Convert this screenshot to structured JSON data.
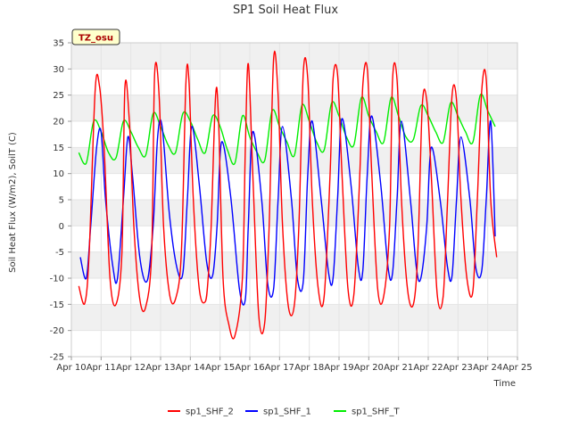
{
  "chart_data": {
    "type": "line",
    "title": "SP1 Soil Heat Flux",
    "xlabel": "Time",
    "ylabel": "Soil Heat Flux (W/m2), SoilT (C)",
    "site_badge": "TZ_osu",
    "xlim": [
      10,
      25
    ],
    "ylim": [
      -25,
      35
    ],
    "x_ticks": [
      10,
      11,
      12,
      13,
      14,
      15,
      16,
      17,
      18,
      19,
      20,
      21,
      22,
      23,
      24,
      25
    ],
    "x_tick_labels": [
      "Apr 10",
      "Apr 11",
      "Apr 12",
      "Apr 13",
      "Apr 14",
      "Apr 15",
      "Apr 16",
      "Apr 17",
      "Apr 18",
      "Apr 19",
      "Apr 20",
      "Apr 21",
      "Apr 22",
      "Apr 23",
      "Apr 24",
      "Apr 25"
    ],
    "y_ticks": [
      -25,
      -20,
      -15,
      -10,
      -5,
      0,
      5,
      10,
      15,
      20,
      25,
      30,
      35
    ],
    "grid": true,
    "legend_position": "bottom",
    "colors": {
      "sp1_SHF_2": "#ff0000",
      "sp1_SHF_1": "#0000ff",
      "sp1_SHF_T": "#00ee00",
      "band": "#f0f0f0",
      "badge_fill": "#ffffcc",
      "badge_text": "#aa0000"
    },
    "series": [
      {
        "name": "sp1_SHF_2",
        "x": [
          10.25,
          10.45,
          10.6,
          10.8,
          10.95,
          11.1,
          11.3,
          11.5,
          11.7,
          11.8,
          11.95,
          12.1,
          12.3,
          12.5,
          12.7,
          12.8,
          12.95,
          13.1,
          13.3,
          13.5,
          13.7,
          13.85,
          13.95,
          14.1,
          14.3,
          14.5,
          14.6,
          14.7,
          14.85,
          14.95,
          15.1,
          15.3,
          15.5,
          15.75,
          15.85,
          15.95,
          16.1,
          16.3,
          16.5,
          16.65,
          16.8,
          16.95,
          17.1,
          17.3,
          17.5,
          17.65,
          17.8,
          17.95,
          18.1,
          18.3,
          18.5,
          18.7,
          18.8,
          18.95,
          19.1,
          19.3,
          19.5,
          19.7,
          19.8,
          19.95,
          20.1,
          20.3,
          20.5,
          20.7,
          20.8,
          20.95,
          21.1,
          21.3,
          21.5,
          21.65,
          21.8,
          21.95,
          22.1,
          22.3,
          22.5,
          22.65,
          22.8,
          22.95,
          23.1,
          23.3,
          23.5,
          23.65,
          23.8,
          23.95,
          24.1,
          24.3
        ],
        "y": [
          -11.5,
          -14.8,
          -5,
          26,
          26.5,
          15,
          -10,
          -15,
          -5,
          26.5,
          20,
          0,
          -14,
          -15.5,
          -5,
          29,
          25,
          0,
          -13,
          -14,
          -5,
          27,
          28,
          5,
          -12,
          -14.5,
          -10,
          0,
          25,
          20,
          -10,
          -19,
          -21,
          -10,
          15,
          31,
          10,
          -17,
          -18.5,
          0,
          32,
          25,
          0,
          -15.5,
          -15,
          0,
          29.5,
          28,
          5,
          -12,
          -13.5,
          10,
          28,
          29,
          10,
          -12,
          -13,
          10,
          27,
          30,
          10,
          -12,
          -13.5,
          0,
          28,
          28,
          5,
          -12,
          -15,
          -5,
          23,
          24,
          10,
          -13,
          -13.5,
          5,
          25,
          24,
          5,
          -10,
          -12.5,
          5,
          26,
          28,
          5,
          -6
        ]
      },
      {
        "name": "sp1_SHF_1",
        "x": [
          10.3,
          10.5,
          10.65,
          10.85,
          11.0,
          11.15,
          11.4,
          11.55,
          11.75,
          11.9,
          12.05,
          12.3,
          12.55,
          12.75,
          12.9,
          13.05,
          13.3,
          13.55,
          13.75,
          13.9,
          14.05,
          14.3,
          14.55,
          14.75,
          14.9,
          15.05,
          15.35,
          15.65,
          15.85,
          15.95,
          16.1,
          16.4,
          16.6,
          16.8,
          16.95,
          17.1,
          17.4,
          17.6,
          17.8,
          17.95,
          18.1,
          18.4,
          18.65,
          18.8,
          18.95,
          19.1,
          19.4,
          19.65,
          19.8,
          19.95,
          20.1,
          20.4,
          20.65,
          20.8,
          20.95,
          21.1,
          21.4,
          21.6,
          21.75,
          21.95,
          22.1,
          22.4,
          22.65,
          22.8,
          22.95,
          23.1,
          23.4,
          23.6,
          23.8,
          23.95,
          24.1,
          24.25
        ],
        "y": [
          -6,
          -10,
          0,
          15,
          18,
          5,
          -8,
          -10,
          5,
          17,
          10,
          -6,
          -10.5,
          0,
          17,
          19,
          2,
          -8,
          -9,
          5,
          19,
          8,
          -7,
          -9.5,
          0,
          16,
          6,
          -12,
          -14,
          0,
          18,
          5,
          -11,
          -12,
          5,
          19,
          5,
          -10,
          -10.5,
          10,
          20,
          5,
          -9,
          -10,
          5,
          20.5,
          8,
          -8,
          -8.5,
          10,
          21,
          8,
          -8,
          -9,
          5,
          20,
          5,
          -8,
          -10,
          0,
          15,
          5,
          -8,
          -9.5,
          5,
          17,
          5,
          -8,
          -8.5,
          5,
          20,
          -2
        ]
      },
      {
        "name": "sp1_SHF_T",
        "x": [
          10.25,
          10.5,
          10.75,
          11.0,
          11.25,
          11.5,
          11.75,
          12.0,
          12.25,
          12.5,
          12.75,
          13.0,
          13.25,
          13.5,
          13.75,
          14.0,
          14.25,
          14.5,
          14.75,
          15.0,
          15.25,
          15.5,
          15.75,
          16.0,
          16.25,
          16.5,
          16.75,
          17.0,
          17.25,
          17.5,
          17.75,
          18.0,
          18.25,
          18.5,
          18.75,
          19.0,
          19.25,
          19.5,
          19.75,
          20.0,
          20.25,
          20.5,
          20.75,
          21.0,
          21.25,
          21.5,
          21.75,
          22.0,
          22.25,
          22.5,
          22.75,
          23.0,
          23.25,
          23.5,
          23.75,
          24.0,
          24.25
        ],
        "y": [
          14,
          12,
          20,
          18,
          14,
          13,
          20,
          18,
          15,
          13.5,
          21.5,
          19,
          15.5,
          14,
          21.5,
          20,
          16.5,
          14,
          21,
          19,
          14.5,
          12,
          21,
          17,
          14,
          12.5,
          22,
          19,
          16,
          13.5,
          23,
          20,
          16,
          14.5,
          23.5,
          21,
          17,
          15.5,
          24.5,
          21,
          18,
          16,
          24.5,
          21,
          17,
          16.5,
          23,
          21,
          18,
          16,
          23.5,
          21,
          18,
          16,
          25,
          22,
          19
        ]
      }
    ]
  }
}
